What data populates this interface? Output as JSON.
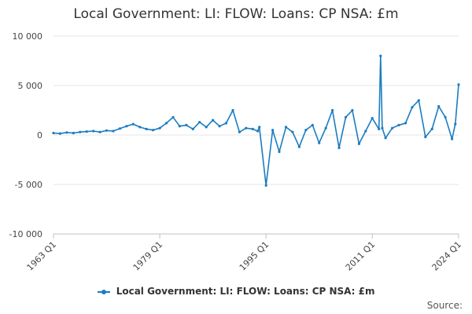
{
  "chart_data": {
    "type": "line",
    "title": "Local Government: LI: FLOW: Loans: CP NSA: £m",
    "xlabel": "",
    "ylabel": "",
    "ylim": [
      -10000,
      10000
    ],
    "y_ticks": [
      "10 000",
      "5 000",
      "0",
      "-5 000",
      "-10 000"
    ],
    "x_ticks": [
      "1963 Q1",
      "1979 Q1",
      "1995 Q1",
      "2011 Q1",
      "2024 Q1"
    ],
    "grid": "horizontal",
    "legend_position": "bottom",
    "line_color": "#1a7dbf",
    "series": [
      {
        "name": "Local Government: LI: FLOW: Loans: CP NSA: £m",
        "x": [
          "1963 Q1",
          "1964 Q1",
          "1965 Q1",
          "1966 Q1",
          "1967 Q1",
          "1968 Q1",
          "1969 Q1",
          "1970 Q1",
          "1971 Q1",
          "1972 Q1",
          "1973 Q1",
          "1974 Q1",
          "1975 Q1",
          "1976 Q1",
          "1977 Q1",
          "1978 Q1",
          "1979 Q1",
          "1980 Q1",
          "1981 Q1",
          "1982 Q1",
          "1983 Q1",
          "1984 Q1",
          "1985 Q1",
          "1986 Q1",
          "1987 Q1",
          "1988 Q1",
          "1989 Q1",
          "1990 Q1",
          "1991 Q1",
          "1992 Q1",
          "1993 Q1",
          "1993 Q4",
          "1994 Q1",
          "1995 Q1",
          "1996 Q1",
          "1997 Q1",
          "1998 Q1",
          "1999 Q1",
          "2000 Q1",
          "2001 Q1",
          "2002 Q1",
          "2003 Q1",
          "2004 Q1",
          "2005 Q1",
          "2006 Q1",
          "2007 Q1",
          "2008 Q1",
          "2009 Q1",
          "2010 Q1",
          "2011 Q1",
          "2012 Q1",
          "2012 Q2",
          "2012 Q3",
          "2013 Q1",
          "2014 Q1",
          "2015 Q1",
          "2016 Q1",
          "2017 Q1",
          "2018 Q1",
          "2019 Q1",
          "2020 Q1",
          "2021 Q1",
          "2022 Q1",
          "2023 Q1",
          "2023 Q3",
          "2024 Q1"
        ],
        "values": [
          200,
          150,
          250,
          200,
          300,
          350,
          400,
          300,
          450,
          400,
          650,
          900,
          1100,
          800,
          600,
          500,
          700,
          1200,
          1800,
          900,
          1000,
          600,
          1300,
          800,
          1500,
          900,
          1200,
          2500,
          300,
          700,
          600,
          400,
          800,
          -5100,
          500,
          -1700,
          800,
          300,
          -1200,
          500,
          1000,
          -800,
          700,
          2500,
          -1300,
          1800,
          2500,
          -900,
          400,
          1700,
          600,
          8000,
          700,
          -300,
          700,
          1000,
          1200,
          2800,
          3500,
          -200,
          600,
          2900,
          1800,
          -400,
          1100,
          5100
        ]
      }
    ]
  },
  "legend": {
    "label": "Local Government: LI: FLOW: Loans: CP NSA: £m"
  },
  "source": {
    "label": "Source:"
  }
}
